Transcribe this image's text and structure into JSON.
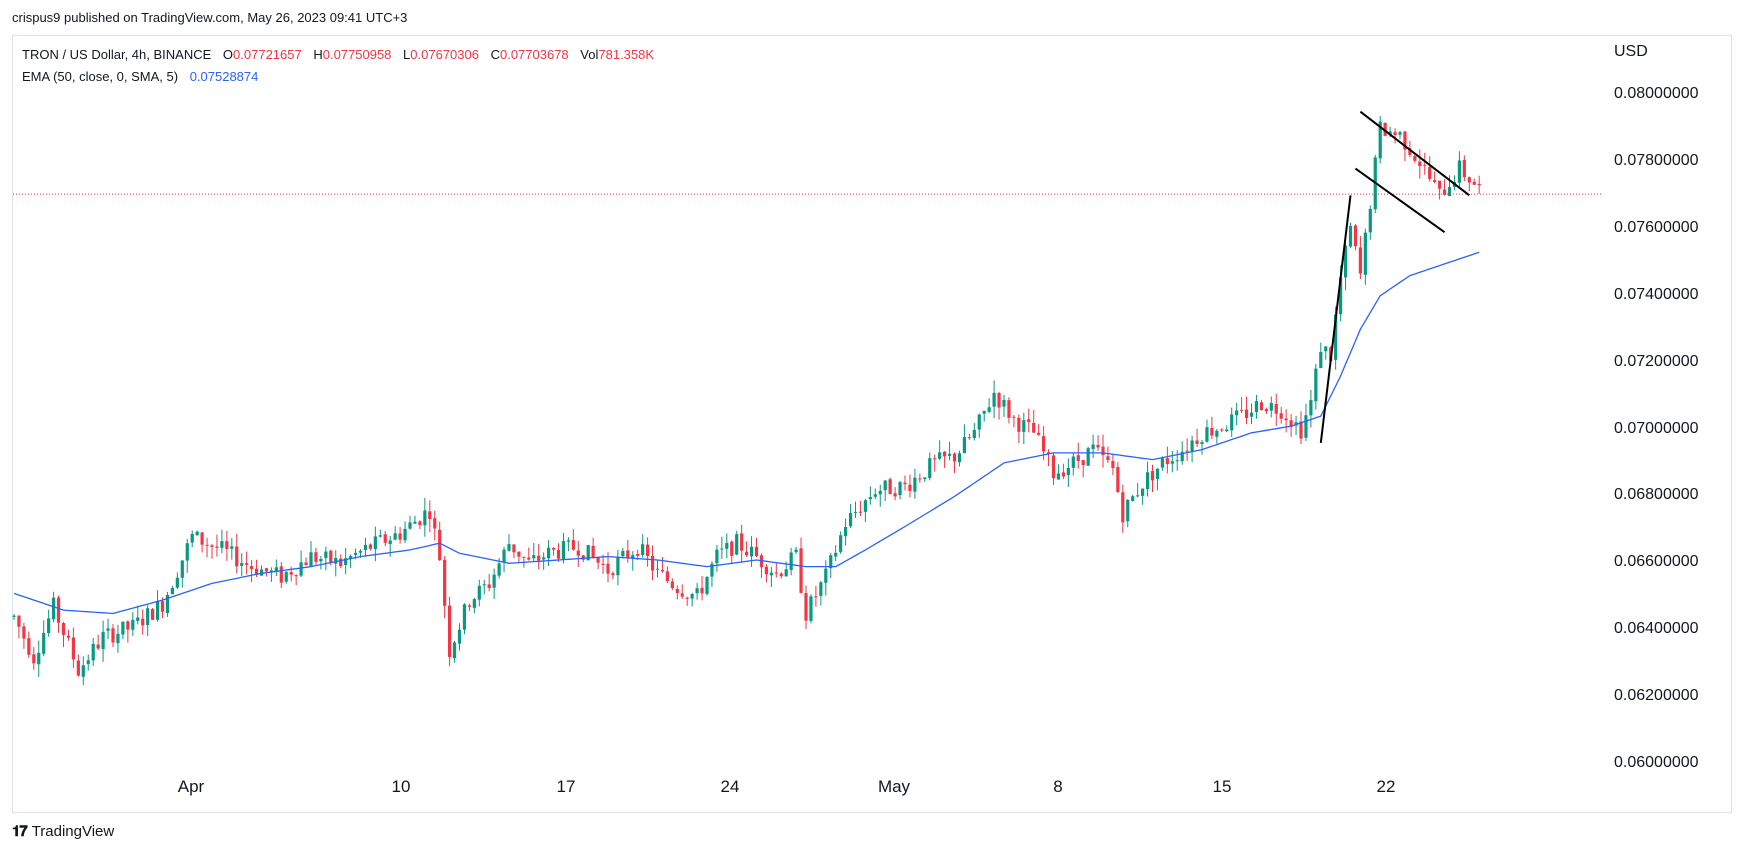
{
  "header": {
    "published": "crispus9 published on TradingView.com, May 26, 2023 09:41 UTC+3"
  },
  "legend": {
    "symbol": "TRON / US Dollar, 4h, BINANCE",
    "o_label": "O",
    "o_value": "0.07721657",
    "h_label": "H",
    "h_value": "0.07750958",
    "l_label": "L",
    "l_value": "0.07670306",
    "c_label": "C",
    "c_value": "0.07703678",
    "vol_label": "Vol",
    "vol_value": "781.358K",
    "ema_label": "EMA (50, close, 0, SMA, 5)",
    "ema_value": "0.07528874"
  },
  "footer": {
    "brand": "TradingView"
  },
  "colors": {
    "up": "#089981",
    "down": "#f23645",
    "ema": "#2962ff",
    "price_line": "#f23645",
    "trendline": "#000000"
  },
  "chart_data": {
    "type": "candlestick",
    "currency": "USD",
    "ylim": [
      0.06,
      0.0807
    ],
    "y_ticks": [
      "0.08000000",
      "0.07800000",
      "0.07600000",
      "0.07400000",
      "0.07200000",
      "0.07000000",
      "0.06800000",
      "0.06600000",
      "0.06400000",
      "0.06200000",
      "0.06000000"
    ],
    "x_ticks": [
      "Apr",
      "10",
      "17",
      "24",
      "May",
      "8",
      "15",
      "22"
    ],
    "last_close": 0.07703678,
    "ohlc_path": [
      [
        0,
        0.0644
      ],
      [
        4,
        0.0632
      ],
      [
        8,
        0.0647
      ],
      [
        13,
        0.0628
      ],
      [
        18,
        0.0638
      ],
      [
        24,
        0.0641
      ],
      [
        30,
        0.0648
      ],
      [
        36,
        0.0668
      ],
      [
        42,
        0.0664
      ],
      [
        48,
        0.0659
      ],
      [
        54,
        0.0656
      ],
      [
        60,
        0.0662
      ],
      [
        66,
        0.066
      ],
      [
        72,
        0.0665
      ],
      [
        78,
        0.0669
      ],
      [
        84,
        0.0676
      ],
      [
        86,
        0.0662
      ],
      [
        88,
        0.0634
      ],
      [
        92,
        0.0649
      ],
      [
        96,
        0.0654
      ],
      [
        100,
        0.0666
      ],
      [
        104,
        0.066
      ],
      [
        108,
        0.0663
      ],
      [
        114,
        0.0665
      ],
      [
        120,
        0.0658
      ],
      [
        126,
        0.0665
      ],
      [
        130,
        0.0657
      ],
      [
        134,
        0.0653
      ],
      [
        138,
        0.065
      ],
      [
        142,
        0.0662
      ],
      [
        146,
        0.0666
      ],
      [
        150,
        0.0662
      ],
      [
        154,
        0.0657
      ],
      [
        158,
        0.0662
      ],
      [
        160,
        0.0645
      ],
      [
        164,
        0.0656
      ],
      [
        168,
        0.0672
      ],
      [
        174,
        0.0682
      ],
      [
        180,
        0.0683
      ],
      [
        186,
        0.069
      ],
      [
        190,
        0.0692
      ],
      [
        194,
        0.0699
      ],
      [
        198,
        0.0711
      ],
      [
        202,
        0.0703
      ],
      [
        206,
        0.0699
      ],
      [
        210,
        0.0687
      ],
      [
        214,
        0.069
      ],
      [
        218,
        0.0694
      ],
      [
        222,
        0.0688
      ],
      [
        224,
        0.0675
      ],
      [
        228,
        0.0684
      ],
      [
        232,
        0.069
      ],
      [
        236,
        0.0694
      ],
      [
        240,
        0.0699
      ],
      [
        244,
        0.0701
      ],
      [
        248,
        0.0704
      ],
      [
        252,
        0.0708
      ],
      [
        256,
        0.0706
      ],
      [
        260,
        0.07
      ],
      [
        262,
        0.0708
      ],
      [
        264,
        0.0725
      ],
      [
        266,
        0.0722
      ],
      [
        268,
        0.0745
      ],
      [
        270,
        0.076
      ],
      [
        272,
        0.0746
      ],
      [
        274,
        0.0768
      ],
      [
        276,
        0.079
      ],
      [
        280,
        0.0788
      ],
      [
        284,
        0.078
      ],
      [
        288,
        0.077
      ],
      [
        292,
        0.0778
      ],
      [
        296,
        0.0772
      ]
    ],
    "ema_path": [
      [
        0,
        0.0651
      ],
      [
        10,
        0.0646
      ],
      [
        20,
        0.0645
      ],
      [
        30,
        0.0649
      ],
      [
        40,
        0.0654
      ],
      [
        50,
        0.0657
      ],
      [
        60,
        0.0659
      ],
      [
        70,
        0.0662
      ],
      [
        80,
        0.0664
      ],
      [
        86,
        0.0666
      ],
      [
        90,
        0.0663
      ],
      [
        100,
        0.066
      ],
      [
        110,
        0.0661
      ],
      [
        120,
        0.0662
      ],
      [
        130,
        0.0661
      ],
      [
        140,
        0.0659
      ],
      [
        150,
        0.0661
      ],
      [
        160,
        0.0659
      ],
      [
        166,
        0.0659
      ],
      [
        172,
        0.0664
      ],
      [
        180,
        0.0671
      ],
      [
        190,
        0.068
      ],
      [
        200,
        0.069
      ],
      [
        210,
        0.0693
      ],
      [
        220,
        0.0693
      ],
      [
        230,
        0.0691
      ],
      [
        240,
        0.0694
      ],
      [
        250,
        0.0699
      ],
      [
        258,
        0.0701
      ],
      [
        264,
        0.0704
      ],
      [
        268,
        0.0716
      ],
      [
        272,
        0.073
      ],
      [
        276,
        0.074
      ],
      [
        282,
        0.0746
      ],
      [
        290,
        0.075
      ],
      [
        296,
        0.0753
      ]
    ],
    "annotations": [
      {
        "name": "flagpole",
        "points": [
          [
            264,
            0.0696
          ],
          [
            270,
            0.077
          ]
        ]
      },
      {
        "name": "flag-upper",
        "points": [
          [
            272,
            0.0795
          ],
          [
            294,
            0.077
          ]
        ]
      },
      {
        "name": "flag-lower",
        "points": [
          [
            271,
            0.0778
          ],
          [
            289,
            0.0759
          ]
        ]
      }
    ]
  }
}
